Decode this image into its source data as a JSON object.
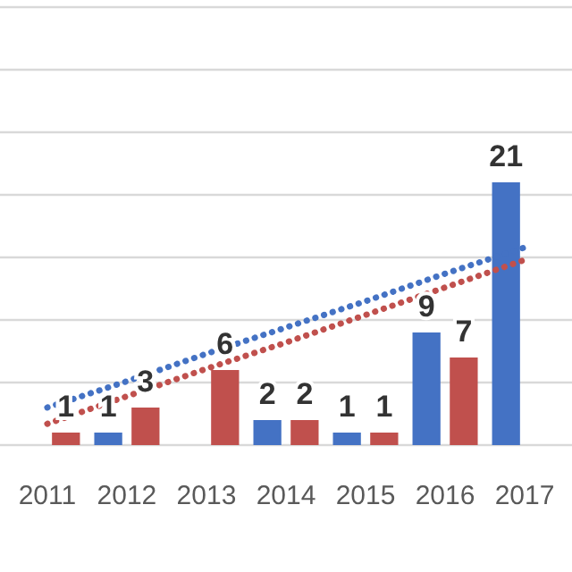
{
  "chart_data": {
    "type": "bar",
    "categories": [
      "2011",
      "2012",
      "2013",
      "2014",
      "2015",
      "2016",
      "2017"
    ],
    "series": [
      {
        "color": "#4472c4",
        "values": [
          null,
          1,
          0,
          2,
          1,
          9,
          21
        ],
        "value_labels": [
          null,
          "1",
          null,
          "2",
          "1",
          "9",
          "21"
        ]
      },
      {
        "color": "#c0504d",
        "values": [
          1,
          3,
          6,
          2,
          1,
          7,
          null
        ],
        "value_labels": [
          "1",
          "3",
          "6",
          "2",
          "1",
          "7",
          null
        ]
      },
      {
        "type": "line",
        "color": "#4472c4",
        "line_style": "dotted",
        "values": [
          3.0,
          5.1,
          7.3,
          9.4,
          11.5,
          13.7,
          15.8
        ]
      },
      {
        "type": "line",
        "color": "#c0504d",
        "line_style": "dotted",
        "values": [
          1.7,
          3.9,
          6.1,
          8.2,
          10.4,
          12.6,
          14.8
        ]
      }
    ],
    "ylim": [
      0,
      35
    ],
    "yticks": [
      {
        "value": 0,
        "label": null
      },
      {
        "value": 5,
        "label": null
      },
      {
        "value": 10,
        "label": null
      },
      {
        "value": 15,
        "label": null
      },
      {
        "value": 20,
        "label": null
      },
      {
        "value": 25,
        "label": null
      },
      {
        "value": 30,
        "label": null
      },
      {
        "value": 35,
        "label": null
      }
    ],
    "grid": "y",
    "tick_labels": "x"
  }
}
